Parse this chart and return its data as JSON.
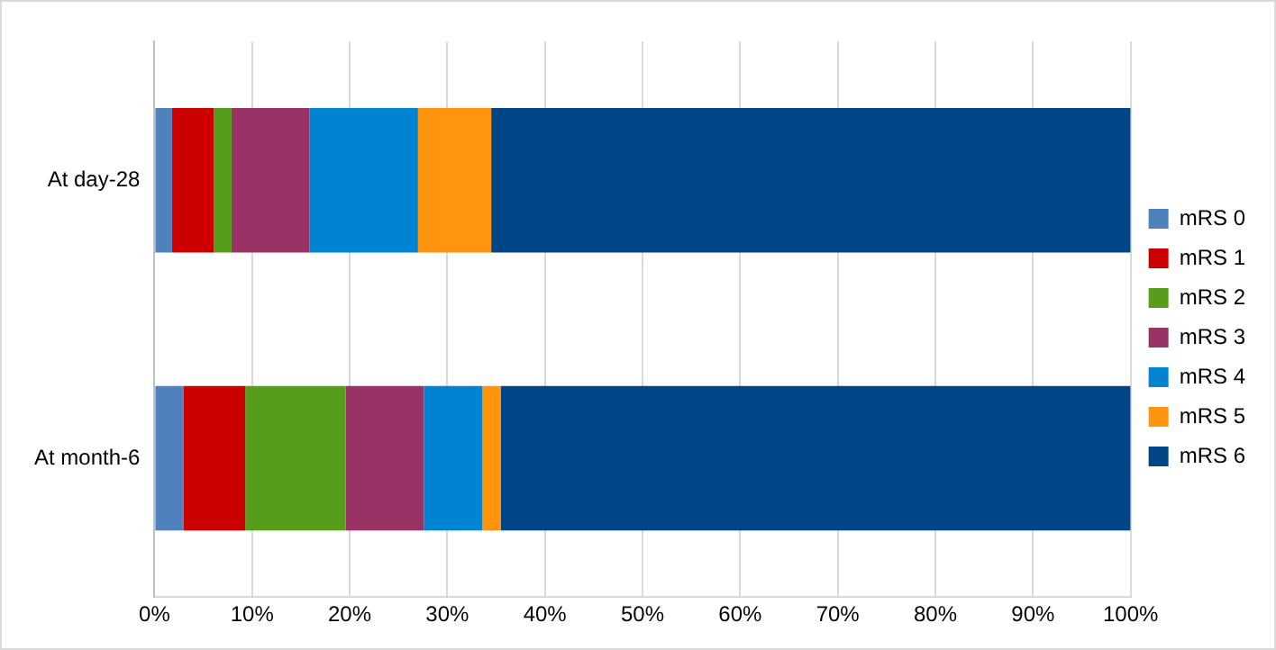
{
  "chart_data": {
    "type": "bar",
    "orientation": "horizontal",
    "stacked": true,
    "categories": [
      "At day-28",
      "At month-6"
    ],
    "series": [
      {
        "name": "mRS 0",
        "color": "#4f81bd",
        "values": [
          1.8,
          3.0
        ]
      },
      {
        "name": "mRS 1",
        "color": "#cc0000",
        "values": [
          4.3,
          6.3
        ]
      },
      {
        "name": "mRS 2",
        "color": "#579d1c",
        "values": [
          1.8,
          10.3
        ]
      },
      {
        "name": "mRS 3",
        "color": "#993366",
        "values": [
          8.0,
          8.0
        ]
      },
      {
        "name": "mRS 4",
        "color": "#0084d1",
        "values": [
          11.1,
          6.0
        ]
      },
      {
        "name": "mRS 5",
        "color": "#ff950e",
        "values": [
          7.5,
          1.9
        ]
      },
      {
        "name": "mRS 6",
        "color": "#004586",
        "values": [
          65.5,
          64.5
        ]
      }
    ],
    "xlim": [
      0,
      100
    ],
    "xticks": [
      {
        "value": 0,
        "label": "0%"
      },
      {
        "value": 10,
        "label": "10%"
      },
      {
        "value": 20,
        "label": "20%"
      },
      {
        "value": 30,
        "label": "30%"
      },
      {
        "value": 40,
        "label": "40%"
      },
      {
        "value": 50,
        "label": "50%"
      },
      {
        "value": 60,
        "label": "60%"
      },
      {
        "value": 70,
        "label": "70%"
      },
      {
        "value": 80,
        "label": "80%"
      },
      {
        "value": 90,
        "label": "90%"
      },
      {
        "value": 100,
        "label": "100%"
      }
    ],
    "grid": "x",
    "legend": "right"
  }
}
